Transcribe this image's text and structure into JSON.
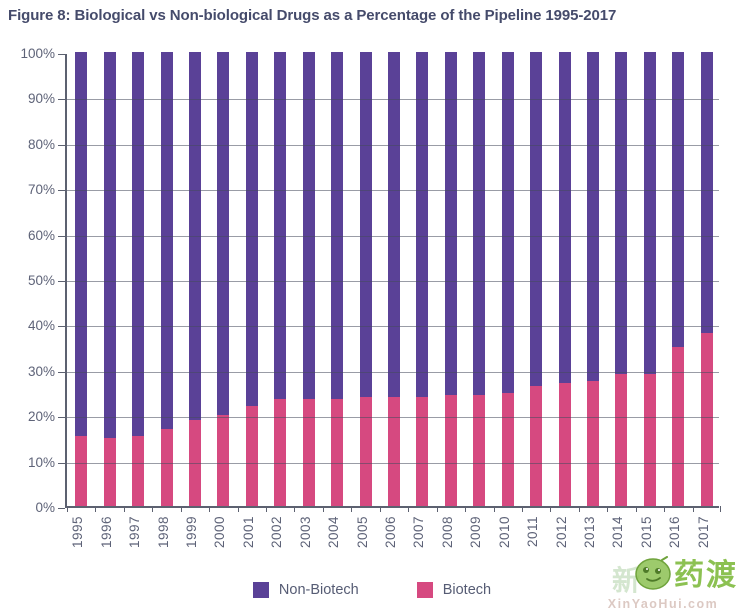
{
  "title": "Figure 8: Biological vs Non-biological Drugs as a Percentage of the Pipeline 1995-2017",
  "colors": {
    "non_biotech": "#5a4197",
    "biotech": "#d64980",
    "title_text": "#454b6b",
    "axis_line": "#5c6170",
    "axis_text": "#5e6378",
    "watermark_green": "#8cc152",
    "watermark_domain_text": "#dcc9c3"
  },
  "chart_data": {
    "type": "bar",
    "stacked": true,
    "title": "Figure 8: Biological vs Non-biological Drugs as a Percentage of the Pipeline 1995-2017",
    "xlabel": "",
    "ylabel": "",
    "ylim": [
      0,
      100
    ],
    "grid": true,
    "legend_position": "bottom",
    "y_ticks": [
      "0%",
      "10%",
      "20%",
      "30%",
      "40%",
      "50%",
      "60%",
      "70%",
      "80%",
      "90%",
      "100%"
    ],
    "categories": [
      "1995",
      "1996",
      "1997",
      "1998",
      "1999",
      "2000",
      "2001",
      "2002",
      "2003",
      "2004",
      "2005",
      "2006",
      "2007",
      "2008",
      "2009",
      "2010",
      "2011",
      "2012",
      "2013",
      "2014",
      "2015",
      "2016",
      "2017"
    ],
    "series": [
      {
        "name": "Non-Biotech",
        "color": "#5a4197",
        "values": [
          84.5,
          85,
          84.5,
          83,
          81,
          80,
          78,
          76.5,
          76.5,
          76.5,
          76,
          76,
          76,
          75.5,
          75.5,
          75,
          73.5,
          73,
          72.5,
          71,
          71,
          65,
          62
        ]
      },
      {
        "name": "Biotech",
        "color": "#d64980",
        "values": [
          15.5,
          15,
          15.5,
          17,
          19,
          20,
          22,
          23.5,
          23.5,
          23.5,
          24,
          24,
          24,
          24.5,
          24.5,
          25,
          26.5,
          27,
          27.5,
          29,
          29,
          35,
          38
        ]
      }
    ]
  },
  "legend": {
    "items": [
      {
        "label": "Non-Biotech"
      },
      {
        "label": "Biotech"
      }
    ]
  },
  "watermark": {
    "prefix": "新",
    "brand": "药渡",
    "domain": "XinYaoHui.com"
  }
}
